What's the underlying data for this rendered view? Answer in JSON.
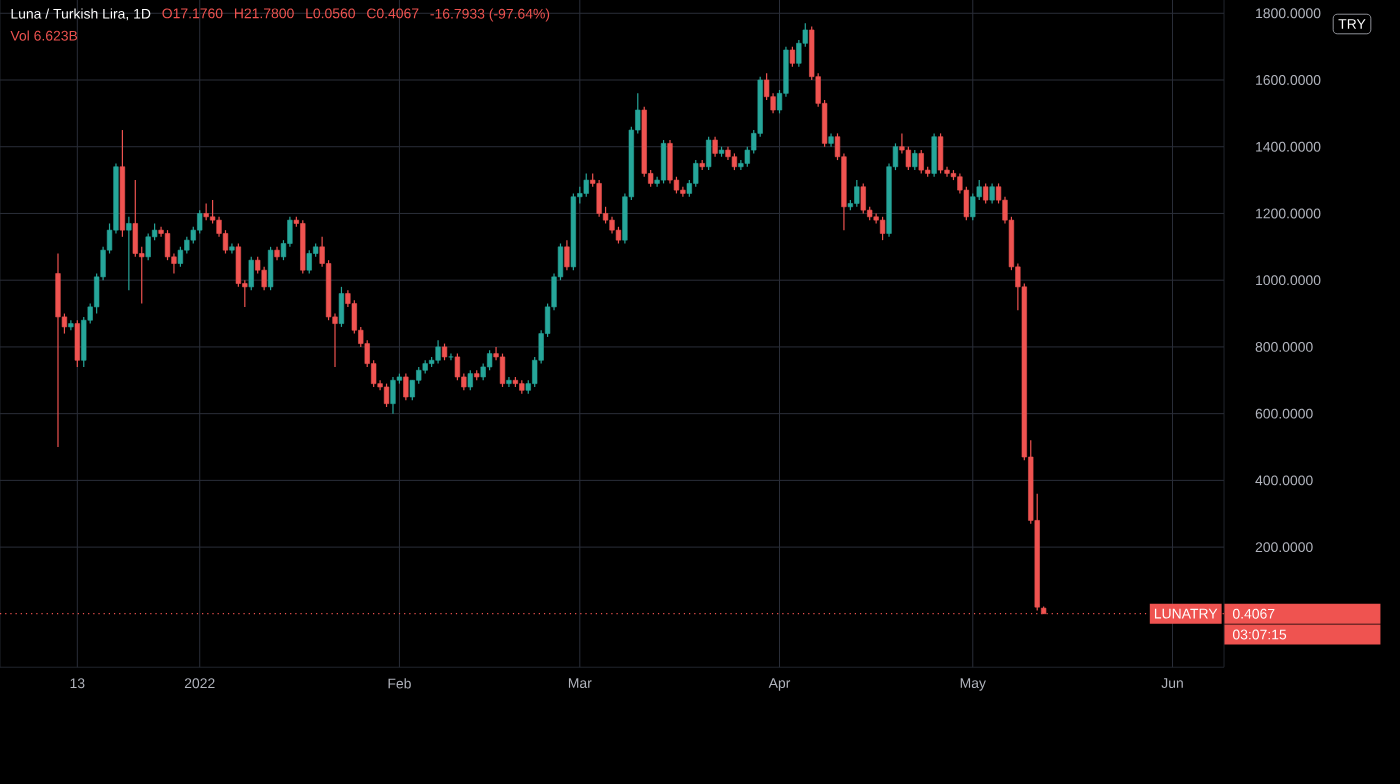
{
  "chart_data": {
    "type": "candlestick",
    "title": "Luna / Turkish Lira, 1D",
    "ylabel": "TRY",
    "annotations": [
      "O17.1760",
      "H21.7800",
      "L0.0560",
      "C0.4067",
      "-16.7933 (-97.64%)",
      "Vol 6.623B",
      "LUNATRY",
      "03:07:15"
    ],
    "x": [
      "2021-12-10",
      "2021-12-11",
      "2021-12-12",
      "2021-12-13",
      "2021-12-14",
      "2021-12-15",
      "2021-12-16",
      "2021-12-17",
      "2021-12-18",
      "2021-12-19",
      "2021-12-20",
      "2021-12-21",
      "2021-12-22",
      "2021-12-23",
      "2021-12-24",
      "2021-12-25",
      "2021-12-26",
      "2021-12-27",
      "2021-12-28",
      "2021-12-29",
      "2021-12-30",
      "2021-12-31",
      "2022-01-01",
      "2022-01-02",
      "2022-01-03",
      "2022-01-04",
      "2022-01-05",
      "2022-01-06",
      "2022-01-07",
      "2022-01-08",
      "2022-01-09",
      "2022-01-10",
      "2022-01-11",
      "2022-01-12",
      "2022-01-13",
      "2022-01-14",
      "2022-01-15",
      "2022-01-16",
      "2022-01-17",
      "2022-01-18",
      "2022-01-19",
      "2022-01-20",
      "2022-01-21",
      "2022-01-22",
      "2022-01-23",
      "2022-01-24",
      "2022-01-25",
      "2022-01-26",
      "2022-01-27",
      "2022-01-28",
      "2022-01-29",
      "2022-01-30",
      "2022-01-31",
      "2022-02-01",
      "2022-02-02",
      "2022-02-03",
      "2022-02-04",
      "2022-02-05",
      "2022-02-06",
      "2022-02-07",
      "2022-02-08",
      "2022-02-09",
      "2022-02-10",
      "2022-02-11",
      "2022-02-12",
      "2022-02-13",
      "2022-02-14",
      "2022-02-15",
      "2022-02-16",
      "2022-02-17",
      "2022-02-18",
      "2022-02-19",
      "2022-02-20",
      "2022-02-21",
      "2022-02-22",
      "2022-02-23",
      "2022-02-24",
      "2022-02-25",
      "2022-02-26",
      "2022-02-27",
      "2022-02-28",
      "2022-03-01",
      "2022-03-02",
      "2022-03-03",
      "2022-03-04",
      "2022-03-05",
      "2022-03-06",
      "2022-03-07",
      "2022-03-08",
      "2022-03-09",
      "2022-03-10",
      "2022-03-11",
      "2022-03-12",
      "2022-03-13",
      "2022-03-14",
      "2022-03-15",
      "2022-03-16",
      "2022-03-17",
      "2022-03-18",
      "2022-03-19",
      "2022-03-20",
      "2022-03-21",
      "2022-03-22",
      "2022-03-23",
      "2022-03-24",
      "2022-03-25",
      "2022-03-26",
      "2022-03-27",
      "2022-03-28",
      "2022-03-29",
      "2022-03-30",
      "2022-03-31",
      "2022-04-01",
      "2022-04-02",
      "2022-04-03",
      "2022-04-04",
      "2022-04-05",
      "2022-04-06",
      "2022-04-07",
      "2022-04-08",
      "2022-04-09",
      "2022-04-10",
      "2022-04-11",
      "2022-04-12",
      "2022-04-13",
      "2022-04-14",
      "2022-04-15",
      "2022-04-16",
      "2022-04-17",
      "2022-04-18",
      "2022-04-19",
      "2022-04-20",
      "2022-04-21",
      "2022-04-22",
      "2022-04-23",
      "2022-04-24",
      "2022-04-25",
      "2022-04-26",
      "2022-04-27",
      "2022-04-28",
      "2022-04-29",
      "2022-04-30",
      "2022-05-01",
      "2022-05-02",
      "2022-05-03",
      "2022-05-04",
      "2022-05-05",
      "2022-05-06",
      "2022-05-07",
      "2022-05-08",
      "2022-05-09",
      "2022-05-10",
      "2022-05-11",
      "2022-05-12"
    ],
    "ohlc": [
      [
        1020,
        1080,
        500,
        890
      ],
      [
        890,
        900,
        840,
        860
      ],
      [
        860,
        880,
        850,
        870
      ],
      [
        870,
        880,
        740,
        760
      ],
      [
        760,
        890,
        740,
        880
      ],
      [
        880,
        930,
        870,
        920
      ],
      [
        920,
        1020,
        900,
        1010
      ],
      [
        1010,
        1100,
        1000,
        1090
      ],
      [
        1090,
        1170,
        1080,
        1150
      ],
      [
        1150,
        1350,
        1140,
        1340
      ],
      [
        1340,
        1450,
        1130,
        1150
      ],
      [
        1150,
        1190,
        970,
        1170
      ],
      [
        1170,
        1300,
        1070,
        1080
      ],
      [
        1080,
        1100,
        930,
        1070
      ],
      [
        1070,
        1140,
        1060,
        1130
      ],
      [
        1130,
        1170,
        1120,
        1150
      ],
      [
        1150,
        1160,
        1130,
        1140
      ],
      [
        1140,
        1150,
        1060,
        1070
      ],
      [
        1070,
        1080,
        1020,
        1050
      ],
      [
        1050,
        1100,
        1040,
        1090
      ],
      [
        1090,
        1130,
        1080,
        1120
      ],
      [
        1120,
        1160,
        1110,
        1150
      ],
      [
        1150,
        1210,
        1140,
        1200
      ],
      [
        1200,
        1230,
        1180,
        1190
      ],
      [
        1190,
        1240,
        1170,
        1180
      ],
      [
        1180,
        1190,
        1130,
        1140
      ],
      [
        1140,
        1150,
        1080,
        1090
      ],
      [
        1090,
        1110,
        1080,
        1100
      ],
      [
        1100,
        1110,
        980,
        990
      ],
      [
        990,
        1000,
        920,
        980
      ],
      [
        980,
        1070,
        970,
        1060
      ],
      [
        1060,
        1070,
        1020,
        1030
      ],
      [
        1030,
        1040,
        970,
        980
      ],
      [
        980,
        1100,
        970,
        1090
      ],
      [
        1090,
        1100,
        1060,
        1070
      ],
      [
        1070,
        1120,
        1060,
        1110
      ],
      [
        1110,
        1190,
        1100,
        1180
      ],
      [
        1180,
        1190,
        1160,
        1170
      ],
      [
        1170,
        1180,
        1020,
        1030
      ],
      [
        1030,
        1090,
        1020,
        1080
      ],
      [
        1080,
        1110,
        1070,
        1100
      ],
      [
        1100,
        1130,
        1040,
        1050
      ],
      [
        1050,
        1060,
        880,
        890
      ],
      [
        890,
        900,
        740,
        870
      ],
      [
        870,
        980,
        860,
        960
      ],
      [
        960,
        970,
        920,
        930
      ],
      [
        930,
        940,
        840,
        850
      ],
      [
        850,
        860,
        800,
        810
      ],
      [
        810,
        820,
        740,
        750
      ],
      [
        750,
        760,
        680,
        690
      ],
      [
        690,
        700,
        670,
        680
      ],
      [
        680,
        690,
        620,
        630
      ],
      [
        630,
        710,
        600,
        700
      ],
      [
        700,
        720,
        690,
        710
      ],
      [
        710,
        720,
        640,
        650
      ],
      [
        650,
        700,
        640,
        700
      ],
      [
        700,
        740,
        690,
        730
      ],
      [
        730,
        760,
        720,
        750
      ],
      [
        750,
        770,
        740,
        760
      ],
      [
        760,
        820,
        750,
        800
      ],
      [
        800,
        810,
        760,
        770
      ],
      [
        770,
        780,
        760,
        770
      ],
      [
        770,
        780,
        700,
        710
      ],
      [
        710,
        720,
        670,
        680
      ],
      [
        680,
        730,
        670,
        720
      ],
      [
        720,
        730,
        700,
        710
      ],
      [
        710,
        750,
        700,
        740
      ],
      [
        740,
        790,
        730,
        780
      ],
      [
        780,
        800,
        760,
        770
      ],
      [
        770,
        780,
        680,
        690
      ],
      [
        690,
        710,
        680,
        700
      ],
      [
        700,
        710,
        680,
        690
      ],
      [
        690,
        700,
        660,
        670
      ],
      [
        670,
        700,
        660,
        690
      ],
      [
        690,
        770,
        680,
        760
      ],
      [
        760,
        850,
        750,
        840
      ],
      [
        840,
        930,
        830,
        920
      ],
      [
        920,
        1020,
        910,
        1010
      ],
      [
        1010,
        1110,
        1000,
        1100
      ],
      [
        1100,
        1120,
        1030,
        1040
      ],
      [
        1040,
        1260,
        1030,
        1250
      ],
      [
        1250,
        1280,
        1230,
        1260
      ],
      [
        1260,
        1320,
        1250,
        1300
      ],
      [
        1300,
        1320,
        1280,
        1290
      ],
      [
        1290,
        1300,
        1190,
        1200
      ],
      [
        1200,
        1220,
        1170,
        1180
      ],
      [
        1180,
        1190,
        1140,
        1150
      ],
      [
        1150,
        1160,
        1110,
        1120
      ],
      [
        1120,
        1260,
        1110,
        1250
      ],
      [
        1250,
        1460,
        1240,
        1450
      ],
      [
        1450,
        1560,
        1440,
        1510
      ],
      [
        1510,
        1520,
        1310,
        1320
      ],
      [
        1320,
        1330,
        1280,
        1290
      ],
      [
        1290,
        1310,
        1280,
        1300
      ],
      [
        1300,
        1420,
        1290,
        1410
      ],
      [
        1410,
        1420,
        1290,
        1300
      ],
      [
        1300,
        1310,
        1260,
        1270
      ],
      [
        1270,
        1280,
        1250,
        1260
      ],
      [
        1260,
        1300,
        1250,
        1290
      ],
      [
        1290,
        1360,
        1280,
        1350
      ],
      [
        1350,
        1360,
        1330,
        1340
      ],
      [
        1340,
        1430,
        1330,
        1420
      ],
      [
        1420,
        1430,
        1370,
        1380
      ],
      [
        1380,
        1400,
        1370,
        1390
      ],
      [
        1390,
        1400,
        1360,
        1370
      ],
      [
        1370,
        1380,
        1330,
        1340
      ],
      [
        1340,
        1360,
        1330,
        1350
      ],
      [
        1350,
        1400,
        1340,
        1390
      ],
      [
        1390,
        1450,
        1380,
        1440
      ],
      [
        1440,
        1610,
        1430,
        1600
      ],
      [
        1600,
        1620,
        1540,
        1550
      ],
      [
        1550,
        1560,
        1500,
        1510
      ],
      [
        1510,
        1570,
        1500,
        1560
      ],
      [
        1560,
        1700,
        1550,
        1690
      ],
      [
        1690,
        1700,
        1640,
        1650
      ],
      [
        1650,
        1720,
        1640,
        1710
      ],
      [
        1710,
        1770,
        1700,
        1750
      ],
      [
        1750,
        1760,
        1600,
        1610
      ],
      [
        1610,
        1620,
        1520,
        1530
      ],
      [
        1530,
        1540,
        1400,
        1410
      ],
      [
        1410,
        1440,
        1400,
        1430
      ],
      [
        1430,
        1440,
        1360,
        1370
      ],
      [
        1370,
        1380,
        1150,
        1220
      ],
      [
        1220,
        1240,
        1210,
        1230
      ],
      [
        1230,
        1300,
        1220,
        1280
      ],
      [
        1280,
        1290,
        1200,
        1210
      ],
      [
        1210,
        1220,
        1180,
        1190
      ],
      [
        1190,
        1200,
        1170,
        1180
      ],
      [
        1180,
        1190,
        1120,
        1140
      ],
      [
        1140,
        1350,
        1130,
        1340
      ],
      [
        1340,
        1410,
        1330,
        1400
      ],
      [
        1400,
        1440,
        1380,
        1390
      ],
      [
        1390,
        1400,
        1330,
        1340
      ],
      [
        1340,
        1390,
        1330,
        1380
      ],
      [
        1380,
        1390,
        1320,
        1330
      ],
      [
        1330,
        1340,
        1310,
        1320
      ],
      [
        1320,
        1440,
        1310,
        1430
      ],
      [
        1430,
        1440,
        1320,
        1330
      ],
      [
        1330,
        1340,
        1310,
        1320
      ],
      [
        1320,
        1330,
        1300,
        1310
      ],
      [
        1310,
        1320,
        1260,
        1270
      ],
      [
        1270,
        1280,
        1180,
        1190
      ],
      [
        1190,
        1260,
        1180,
        1250
      ],
      [
        1250,
        1300,
        1240,
        1280
      ],
      [
        1280,
        1290,
        1230,
        1240
      ],
      [
        1240,
        1290,
        1230,
        1280
      ],
      [
        1280,
        1290,
        1230,
        1240
      ],
      [
        1240,
        1250,
        1170,
        1180
      ],
      [
        1180,
        1190,
        1030,
        1040
      ],
      [
        1040,
        1050,
        910,
        980
      ],
      [
        980,
        990,
        460,
        470
      ],
      [
        470,
        520,
        270,
        280
      ],
      [
        280,
        360,
        10,
        20
      ],
      [
        17.176,
        21.78,
        0.056,
        0.4067
      ]
    ],
    "xlim": [
      "2021-12-01",
      "2022-06-09"
    ],
    "xticks": [
      {
        "value": "2021-12-13",
        "label": "13"
      },
      {
        "value": "2022-01-01",
        "label": "2022"
      },
      {
        "value": "2022-02-01",
        "label": "Feb"
      },
      {
        "value": "2022-03-01",
        "label": "Mar"
      },
      {
        "value": "2022-04-01",
        "label": "Apr"
      },
      {
        "value": "2022-05-01",
        "label": "May"
      },
      {
        "value": "2022-06-01",
        "label": "Jun"
      }
    ],
    "ylim": [
      -160,
      1980
    ],
    "yticks": [
      {
        "value": 200,
        "label": "200.0000"
      },
      {
        "value": 400,
        "label": "400.0000"
      },
      {
        "value": 600,
        "label": "600.0000"
      },
      {
        "value": 800,
        "label": "800.0000"
      },
      {
        "value": 1000,
        "label": "1000.0000"
      },
      {
        "value": 1200,
        "label": "1200.0000"
      },
      {
        "value": 1400,
        "label": "1400.0000"
      },
      {
        "value": 1600,
        "label": "1600.0000"
      },
      {
        "value": 1800,
        "label": "1800.0000"
      }
    ],
    "ref_lines": [
      {
        "axis": "y",
        "value": 0.4067,
        "label": "0.4067",
        "color": "#ef5350",
        "line_style": "dotted"
      }
    ],
    "grid": true
  }
}
